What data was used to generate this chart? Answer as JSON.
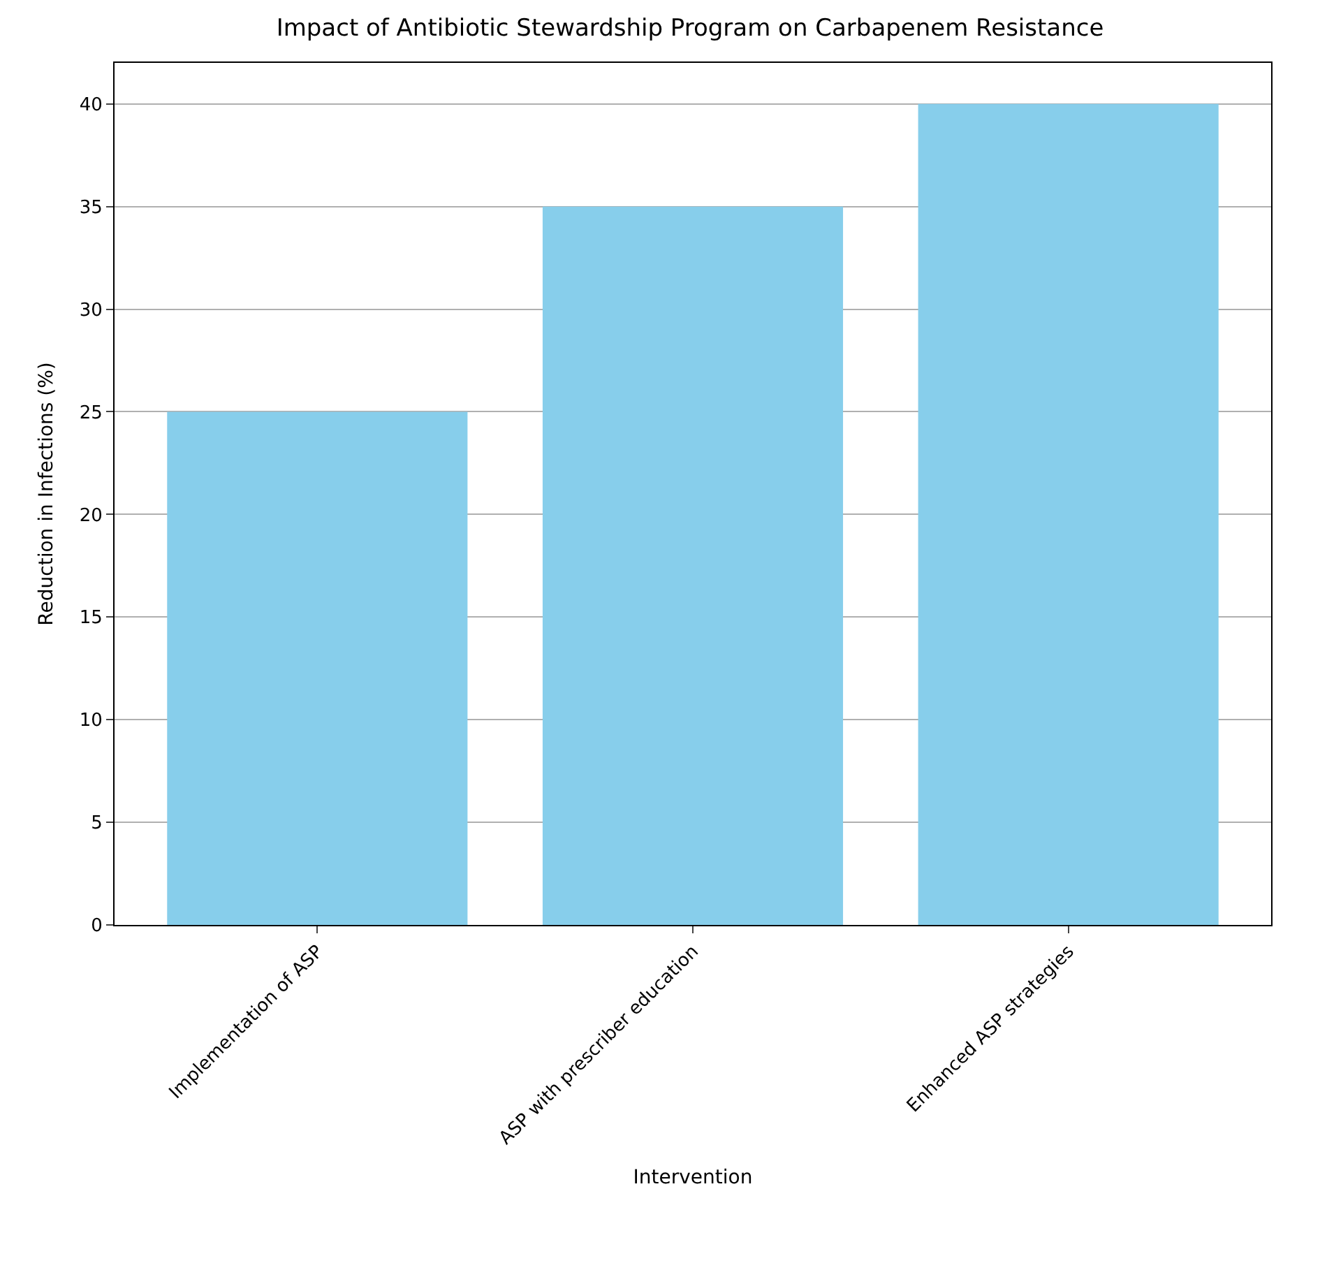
{
  "chart_data": {
    "type": "bar",
    "title": "Impact of Antibiotic Stewardship Program on Carbapenem Resistance",
    "xlabel": "Intervention",
    "ylabel": "Reduction in Infections (%)",
    "categories": [
      "Implementation of ASP",
      "ASP with prescriber education",
      "Enhanced ASP strategies"
    ],
    "values": [
      25,
      35,
      40
    ],
    "color": "#87ceeb",
    "ylim": [
      0,
      42
    ],
    "yticks": [
      0,
      5,
      10,
      15,
      20,
      25,
      30,
      35,
      40
    ],
    "grid": "y"
  }
}
